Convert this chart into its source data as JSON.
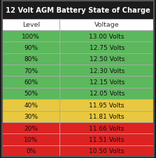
{
  "title": "12 Volt AGM Battery State of Charge",
  "col_headers": [
    "Level",
    "Voltage"
  ],
  "rows": [
    [
      "100%",
      "13.00 Volts"
    ],
    [
      "90%",
      "12.75 Volts"
    ],
    [
      "80%",
      "12.50 Volts"
    ],
    [
      "70%",
      "12.30 Volts"
    ],
    [
      "60%",
      "12.15 Volts"
    ],
    [
      "50%",
      "12.05 Volts"
    ],
    [
      "40%",
      "11.95 Volts"
    ],
    [
      "30%",
      "11.81 Volts"
    ],
    [
      "20%",
      "11.66 Volts"
    ],
    [
      "10%",
      "11.51 Volts"
    ],
    [
      "0%",
      "10.50 Volts"
    ]
  ],
  "row_colors": [
    "#5cb85c",
    "#5cb85c",
    "#5cb85c",
    "#5cb85c",
    "#5cb85c",
    "#5cb85c",
    "#e8c840",
    "#e8c840",
    "#dd2222",
    "#dd2222",
    "#dd2222"
  ],
  "title_bg": "#1c1c1c",
  "title_color": "#ffffff",
  "header_bg": "#ffffff",
  "header_color": "#333333",
  "cell_text_color": "#111111",
  "border_color": "#aaaaaa",
  "outer_border_color": "#555555",
  "title_fontsize": 7.2,
  "header_fontsize": 6.8,
  "cell_fontsize": 6.5
}
